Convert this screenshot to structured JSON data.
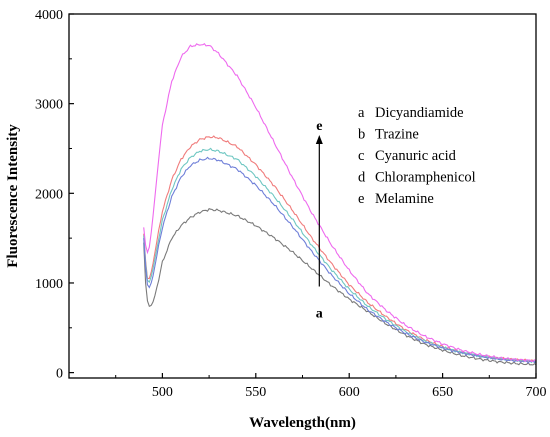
{
  "chart_data": {
    "type": "line",
    "title": "",
    "xlabel": "Wavelength(nm)",
    "ylabel": "Fluorescence Intensity",
    "xlim": [
      450,
      700
    ],
    "ylim": [
      -60,
      4000
    ],
    "xticks": [
      500,
      550,
      600,
      650,
      700
    ],
    "yticks": [
      0,
      1000,
      2000,
      3000,
      4000
    ],
    "grid": false,
    "legend_position": "right",
    "series": [
      {
        "name": "Dicyandiamide",
        "key": "a",
        "color": "#7a7a7a",
        "x": [
          490,
          491,
          492,
          493,
          494,
          495,
          496,
          498,
          500,
          505,
          510,
          515,
          520,
          525,
          530,
          540,
          550,
          560,
          570,
          580,
          590,
          600,
          610,
          620,
          630,
          640,
          650,
          660,
          670,
          680,
          690,
          700
        ],
        "y": [
          1450,
          1000,
          800,
          740,
          750,
          790,
          860,
          1040,
          1230,
          1500,
          1640,
          1730,
          1790,
          1820,
          1810,
          1750,
          1640,
          1500,
          1340,
          1160,
          980,
          820,
          680,
          540,
          420,
          320,
          250,
          190,
          150,
          120,
          100,
          90
        ]
      },
      {
        "name": "Trazine",
        "key": "b",
        "color": "#f07c7c",
        "x": [
          490,
          491,
          492,
          493,
          494,
          495,
          496,
          498,
          500,
          505,
          510,
          515,
          520,
          525,
          530,
          540,
          550,
          560,
          570,
          580,
          590,
          600,
          610,
          620,
          630,
          640,
          650,
          660,
          670,
          680,
          690,
          700
        ],
        "y": [
          1550,
          1250,
          1050,
          1050,
          1120,
          1220,
          1340,
          1580,
          1800,
          2150,
          2380,
          2520,
          2600,
          2630,
          2620,
          2520,
          2320,
          2080,
          1800,
          1500,
          1230,
          980,
          780,
          620,
          480,
          370,
          290,
          230,
          190,
          160,
          140,
          130
        ]
      },
      {
        "name": "Cyanuric acid",
        "key": "c",
        "color": "#6fc7c2",
        "x": [
          490,
          491,
          492,
          493,
          494,
          495,
          496,
          498,
          500,
          505,
          510,
          515,
          520,
          525,
          530,
          540,
          550,
          560,
          570,
          580,
          590,
          600,
          610,
          620,
          630,
          640,
          650,
          660,
          670,
          680,
          690,
          700
        ],
        "y": [
          1530,
          1220,
          1030,
          1010,
          1070,
          1160,
          1270,
          1490,
          1700,
          2040,
          2270,
          2400,
          2470,
          2490,
          2470,
          2380,
          2190,
          1960,
          1700,
          1420,
          1160,
          930,
          740,
          590,
          460,
          355,
          280,
          225,
          185,
          155,
          135,
          125
        ]
      },
      {
        "name": "Chloramphenicol",
        "key": "d",
        "color": "#6f7fd8",
        "x": [
          490,
          491,
          492,
          493,
          494,
          495,
          496,
          498,
          500,
          505,
          510,
          515,
          520,
          525,
          530,
          540,
          550,
          560,
          570,
          580,
          590,
          600,
          610,
          620,
          630,
          640,
          650,
          660,
          670,
          680,
          690,
          700
        ],
        "y": [
          1500,
          1180,
          980,
          950,
          1000,
          1080,
          1190,
          1410,
          1620,
          1960,
          2180,
          2310,
          2370,
          2390,
          2370,
          2270,
          2090,
          1870,
          1620,
          1350,
          1100,
          880,
          700,
          560,
          440,
          345,
          275,
          220,
          180,
          150,
          130,
          120
        ]
      },
      {
        "name": "Melamine",
        "key": "e",
        "color": "#ee6aee",
        "x": [
          490,
          491,
          492,
          493,
          494,
          495,
          496,
          498,
          500,
          505,
          510,
          515,
          520,
          525,
          530,
          540,
          550,
          560,
          570,
          580,
          590,
          600,
          610,
          620,
          630,
          640,
          650,
          660,
          670,
          680,
          690,
          700
        ],
        "y": [
          1620,
          1420,
          1340,
          1400,
          1560,
          1750,
          1960,
          2380,
          2760,
          3250,
          3520,
          3640,
          3660,
          3650,
          3560,
          3310,
          2960,
          2560,
          2160,
          1780,
          1440,
          1140,
          880,
          690,
          530,
          410,
          320,
          250,
          200,
          165,
          145,
          130
        ]
      }
    ],
    "annotations": {
      "arrow_x": 584,
      "arrow_y_from": 960,
      "arrow_y_to": 2650,
      "top_label": "e",
      "bottom_label": "a"
    }
  }
}
